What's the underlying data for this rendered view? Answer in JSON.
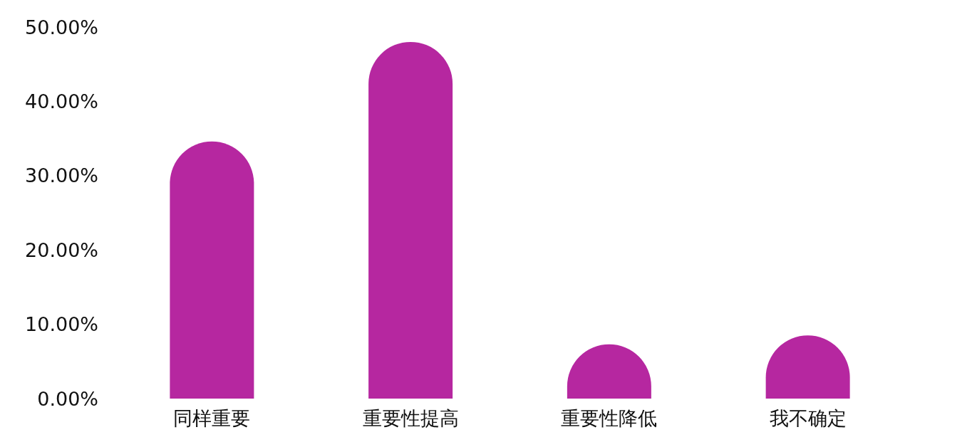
{
  "chart_data": {
    "type": "bar",
    "categories": [
      "同样重要",
      "重要性提高",
      "重要性降低",
      "我不确定"
    ],
    "values": [
      34.6,
      48,
      7.3,
      8.5
    ],
    "color": "#b627a0",
    "ylim": [
      0,
      50
    ],
    "yticks": [
      {
        "value": 0,
        "label": "0.00%"
      },
      {
        "value": 10,
        "label": "10.00%"
      },
      {
        "value": 20,
        "label": "20.00%"
      },
      {
        "value": 30,
        "label": "30.00%"
      },
      {
        "value": 40,
        "label": "40.00%"
      },
      {
        "value": 50,
        "label": "50.00%"
      }
    ],
    "grid": false
  }
}
